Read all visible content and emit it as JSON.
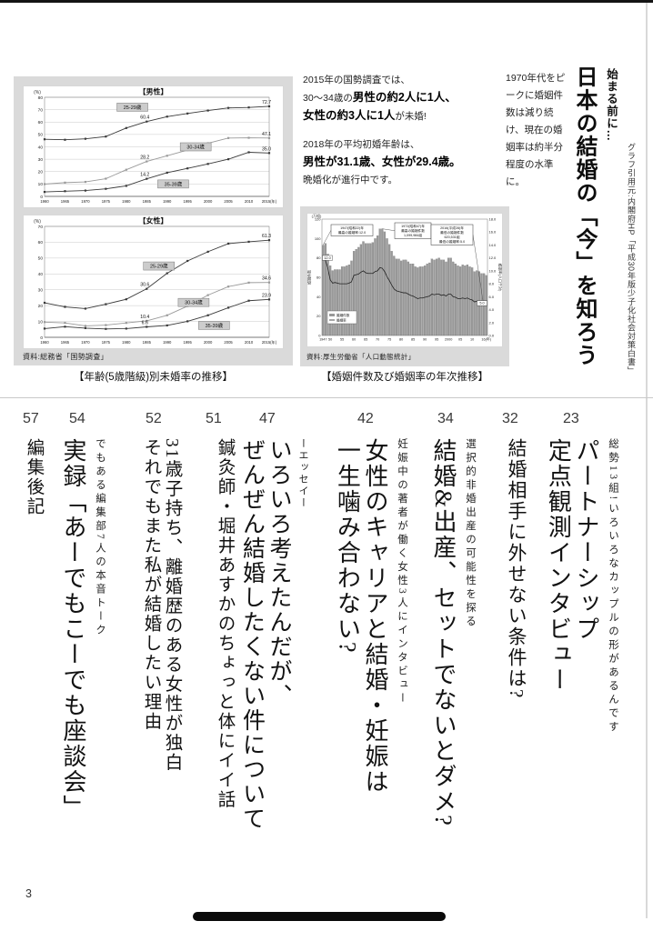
{
  "header": {
    "lead_in": "始まる前に…",
    "main_title": "日本の結婚の「今」を知ろう",
    "credit": "グラフ引用元:内閣府HP「平成30年版少子化社会対策白書」",
    "intro": {
      "l1": "2015年の国勢調査では、",
      "l2a": "30〜34歳の",
      "l2b": "男性の約2人に1人、",
      "l3a": "女性の約3人に1人",
      "l3b": "が未婚!",
      "l4": "2018年の平均初婚年齢は、",
      "l5": "男性が31.1歳、女性が29.4歳。",
      "l6": "晩婚化が進行中です。"
    },
    "peak_text": "1970年代をピークに婚姻件数は減り続け、現在の婚姻率は約半分程度の水準に。",
    "caption_left": "【年齢(5歳階級)別未婚率の推移】",
    "caption_right": "【婚姻件数及び婚姻率の年次推移】",
    "source_left": "資料:総務省「国勢調査」",
    "source_right": "資料:厚生労働省「人口動態統計」"
  },
  "chart_data": [
    {
      "type": "line",
      "title": "【男性】",
      "unit": "(%)",
      "ylim": [
        0,
        80
      ],
      "ystep": 10,
      "x": [
        1960,
        1965,
        1970,
        1975,
        1980,
        1985,
        1990,
        1995,
        2000,
        2005,
        2010,
        2015
      ],
      "xtick_labels": [
        "1960",
        "1965",
        "1970",
        "1975",
        "1980",
        "1985",
        "1990",
        "1995",
        "2000",
        "2005",
        "2010",
        "2015(年)"
      ],
      "series": [
        {
          "name": "25-29歳",
          "color": "#3a3a3a",
          "values": [
            46.1,
            45.7,
            46.5,
            48.3,
            55.2,
            60.4,
            64.4,
            66.9,
            69.3,
            71.4,
            71.8,
            72.7
          ],
          "point_labels": {
            "5": "60.4",
            "11": "72.7"
          },
          "tag": {
            "i": 4.3,
            "v": 72
          }
        },
        {
          "name": "30-34歳",
          "color": "#9a9a9a",
          "values": [
            9.9,
            11.1,
            11.7,
            14.3,
            21.5,
            28.2,
            32.8,
            37.4,
            42.9,
            47.1,
            47.3,
            47.1
          ],
          "point_labels": {
            "5": "28.2",
            "11": "47.1"
          },
          "tag": {
            "i": 7.4,
            "v": 40
          }
        },
        {
          "name": "35-39歳",
          "color": "#3a3a3a",
          "values": [
            3.6,
            4.2,
            4.7,
            6.1,
            8.5,
            14.2,
            19.1,
            22.6,
            26.2,
            30.0,
            35.6,
            35.0
          ],
          "point_labels": {
            "5": "14.2",
            "11": "35.0"
          },
          "tag": {
            "i": 6.3,
            "v": 10
          }
        }
      ]
    },
    {
      "type": "line",
      "title": "【女性】",
      "unit": "(%)",
      "ylim": [
        0,
        70
      ],
      "ystep": 10,
      "x": [
        1960,
        1965,
        1970,
        1975,
        1980,
        1985,
        1990,
        1995,
        2000,
        2005,
        2010,
        2015
      ],
      "xtick_labels": [
        "1960",
        "1965",
        "1970",
        "1975",
        "1980",
        "1985",
        "1990",
        "1995",
        "2000",
        "2005",
        "2010",
        "2015(年)"
      ],
      "series": [
        {
          "name": "25-29歳",
          "color": "#3a3a3a",
          "values": [
            21.8,
            19.2,
            18.1,
            20.9,
            24.0,
            30.6,
            40.4,
            48.2,
            54.0,
            59.1,
            60.3,
            61.3
          ],
          "point_labels": {
            "5": "30.6",
            "11": "61.3"
          },
          "tag": {
            "i": 5.6,
            "v": 45
          }
        },
        {
          "name": "30-34歳",
          "color": "#9a9a9a",
          "values": [
            9.6,
            9.1,
            7.2,
            7.7,
            9.1,
            10.4,
            13.9,
            19.7,
            26.6,
            32.0,
            34.5,
            34.6
          ],
          "point_labels": {
            "5": "10.4",
            "11": "34.6"
          },
          "tag": {
            "i": 7.3,
            "v": 22
          }
        },
        {
          "name": "35-39歳",
          "color": "#3a3a3a",
          "values": [
            5.5,
            6.7,
            5.8,
            5.3,
            5.5,
            6.6,
            7.5,
            10.1,
            13.9,
            18.7,
            23.1,
            23.9
          ],
          "point_labels": {
            "5": "6.6",
            "11": "23.9"
          },
          "tag": {
            "i": 8.3,
            "v": 7.5
          }
        }
      ]
    },
    {
      "type": "bar-line",
      "unit_left": "(万組)",
      "axis_left_label": "婚姻件数",
      "axis_right_label": "婚姻率(人口千対)",
      "ylim_left": [
        0,
        120,
        20
      ],
      "ylim_right": [
        0,
        18,
        2
      ],
      "years_start": 1947,
      "bar_values": [
        93,
        95,
        84,
        72,
        67,
        68,
        68,
        68,
        71,
        71,
        72,
        73,
        77,
        87,
        89,
        91,
        94,
        97,
        95,
        95,
        95,
        96,
        100,
        103,
        110,
        110,
        107,
        100,
        94,
        87,
        82,
        79,
        79,
        77,
        78,
        78,
        76,
        74,
        74,
        71,
        70,
        71,
        71,
        72,
        74,
        75,
        79,
        78,
        79,
        80,
        78,
        78,
        76,
        80,
        80,
        76,
        74,
        72,
        71,
        73,
        72,
        73,
        71,
        70,
        66,
        67,
        66,
        64,
        64,
        62
      ],
      "line_values": [
        12.0,
        11.6,
        10.4,
        8.6,
        8.1,
        8.2,
        8.1,
        8.0,
        8.0,
        8.0,
        8.0,
        8.1,
        8.3,
        9.3,
        9.4,
        9.5,
        9.8,
        10.0,
        9.7,
        9.6,
        9.6,
        9.6,
        9.9,
        10.0,
        10.5,
        10.4,
        9.9,
        9.1,
        8.5,
        7.8,
        7.2,
        6.9,
        6.8,
        6.7,
        6.6,
        6.6,
        6.4,
        6.2,
        6.1,
        5.9,
        5.7,
        5.8,
        5.8,
        5.9,
        6.0,
        6.1,
        6.4,
        6.3,
        6.4,
        6.4,
        6.2,
        6.3,
        6.1,
        6.4,
        6.4,
        6.0,
        5.9,
        5.7,
        5.7,
        5.8,
        5.7,
        5.8,
        5.6,
        5.5,
        5.2,
        5.3,
        5.3,
        5.1,
        5.1,
        5.0
      ],
      "xtick_labels": [
        "1947",
        "50",
        "55",
        "60",
        "65",
        "70",
        "75",
        "80",
        "85",
        "90",
        "95",
        "2000",
        "05",
        "10",
        "16(年)"
      ],
      "xtick_idx": [
        0,
        3,
        8,
        13,
        18,
        23,
        28,
        33,
        38,
        43,
        48,
        53,
        58,
        63,
        69
      ],
      "legend": [
        "婚姻件数",
        "婚姻率"
      ],
      "annotations": [
        {
          "lines": [
            "1947(昭和22)年",
            "最高の婚姻率:12.0"
          ]
        },
        {
          "lines": [
            "1972(昭和47)年",
            "最高の婚姻件数",
            "1,099,984組"
          ]
        },
        {
          "lines": [
            "2016(平成28)年",
            "最低の婚姻件数",
            "620,531組",
            "最低の婚姻率:5.0"
          ]
        }
      ],
      "start_label": "12.0",
      "end_label": "5.0"
    }
  ],
  "toc": {
    "entries": [
      {
        "page": "23",
        "subtitle": "総勢13組!いろいろなカップルの形があるんです",
        "title": "パートナーシップ\n定点観測インタビュー"
      },
      {
        "page": "32",
        "title": "結婚相手に外せない条件は?"
      },
      {
        "page": "34",
        "subtitle": "選択的非婚出産の可能性を探る",
        "title": "結婚&出産、セットでないとダメ?"
      },
      {
        "page": "42",
        "subtitle": "妊娠中の著者が働く女性3人にインタビュー",
        "title": "女性のキャリアと結婚・妊娠は\n一生噛み合わない?"
      },
      {
        "page": "47",
        "subtitle": "ーエッセイー",
        "title": "いろいろ考えたんだが、\nぜんぜん結婚したくない件について"
      },
      {
        "page": "51",
        "title": "鍼灸師・堀井あすかのちょっと体にイイ話"
      },
      {
        "page": "52",
        "title": "31歳子持ち、離婚歴のある女性が独白\nそれでもまた私が結婚したい理由"
      },
      {
        "page": "54",
        "subtitle": "でもある編集部7人の本音トーク",
        "title": "実録「あーでもこーでも座談会」"
      },
      {
        "page": "57",
        "title": "編集後記"
      }
    ]
  },
  "footer": {
    "page_number": "3"
  }
}
